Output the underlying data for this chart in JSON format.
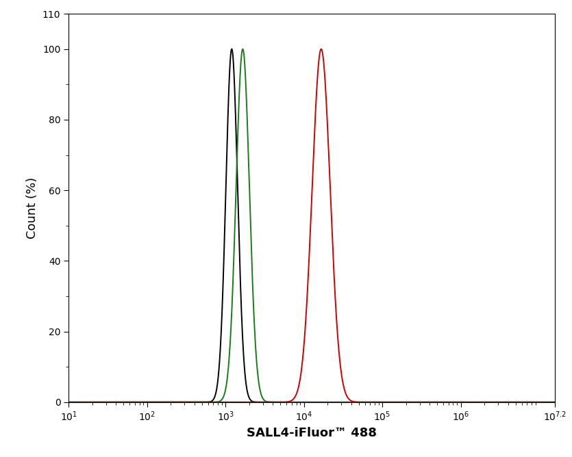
{
  "xlabel": "SALL4-iFluor™ 488",
  "ylabel": "Count (%)",
  "xmin": 1,
  "xmax": 7.2,
  "ymin": 0,
  "ymax": 110,
  "yticks": [
    0,
    20,
    40,
    60,
    80,
    100,
    110
  ],
  "black_peak_log": 3.08,
  "black_sigma_log": 0.075,
  "green_peak_log": 3.22,
  "green_sigma_log": 0.085,
  "red_peak_log": 4.22,
  "red_sigma_log": 0.115,
  "black_color": "#000000",
  "green_color": "#1a7a1a",
  "red_color": "#cc0000",
  "linewidth": 1.4,
  "background_color": "#ffffff",
  "font_size_label": 13,
  "font_size_tick": 10
}
